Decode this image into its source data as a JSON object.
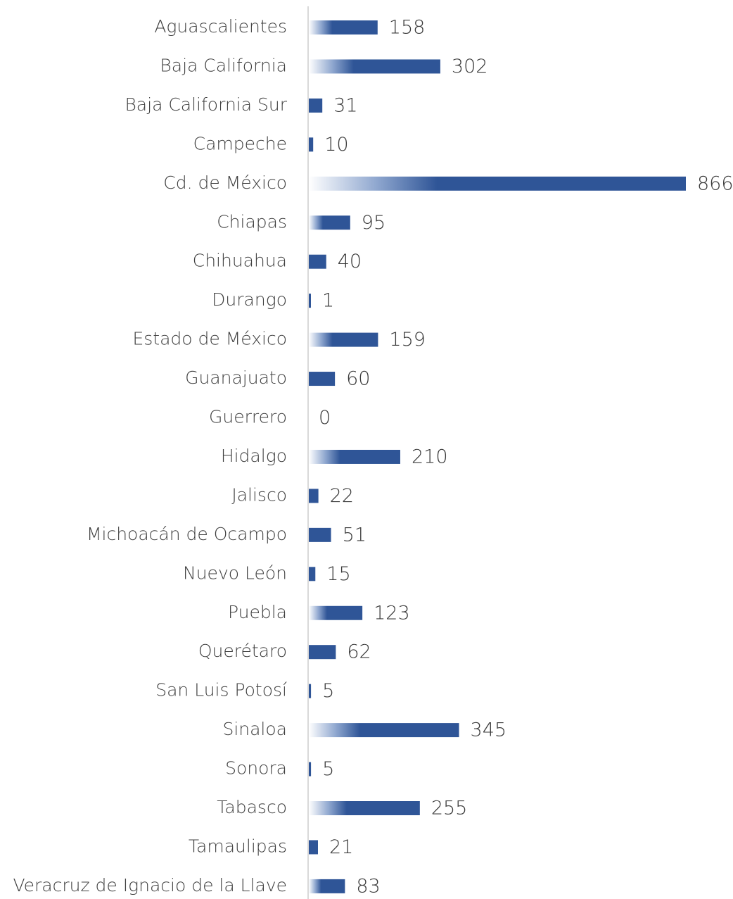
{
  "chart_data": {
    "type": "bar",
    "orientation": "horizontal",
    "title": "",
    "xlabel": "",
    "ylabel": "",
    "grid": false,
    "legend": "none",
    "bar_color": "#2f5597",
    "bar_gradient_start": "#ffffff",
    "axis_color": "#d9d9d9",
    "categories": [
      "Aguascalientes",
      "Baja California",
      "Baja California Sur",
      "Campeche",
      "Cd. de México",
      "Chiapas",
      "Chihuahua",
      "Durango",
      "Estado de México",
      "Guanajuato",
      "Guerrero",
      "Hidalgo",
      "Jalisco",
      "Michoacán de Ocampo",
      "Nuevo León",
      "Puebla",
      "Querétaro",
      "San Luis Potosí",
      "Sinaloa",
      "Sonora",
      "Tabasco",
      "Tamaulipas",
      "Veracruz de Ignacio de la Llave"
    ],
    "values": [
      158,
      302,
      31,
      10,
      866,
      95,
      40,
      1,
      159,
      60,
      0,
      210,
      22,
      51,
      15,
      123,
      62,
      5,
      345,
      5,
      255,
      21,
      83
    ],
    "xlim": [
      0,
      866
    ]
  }
}
